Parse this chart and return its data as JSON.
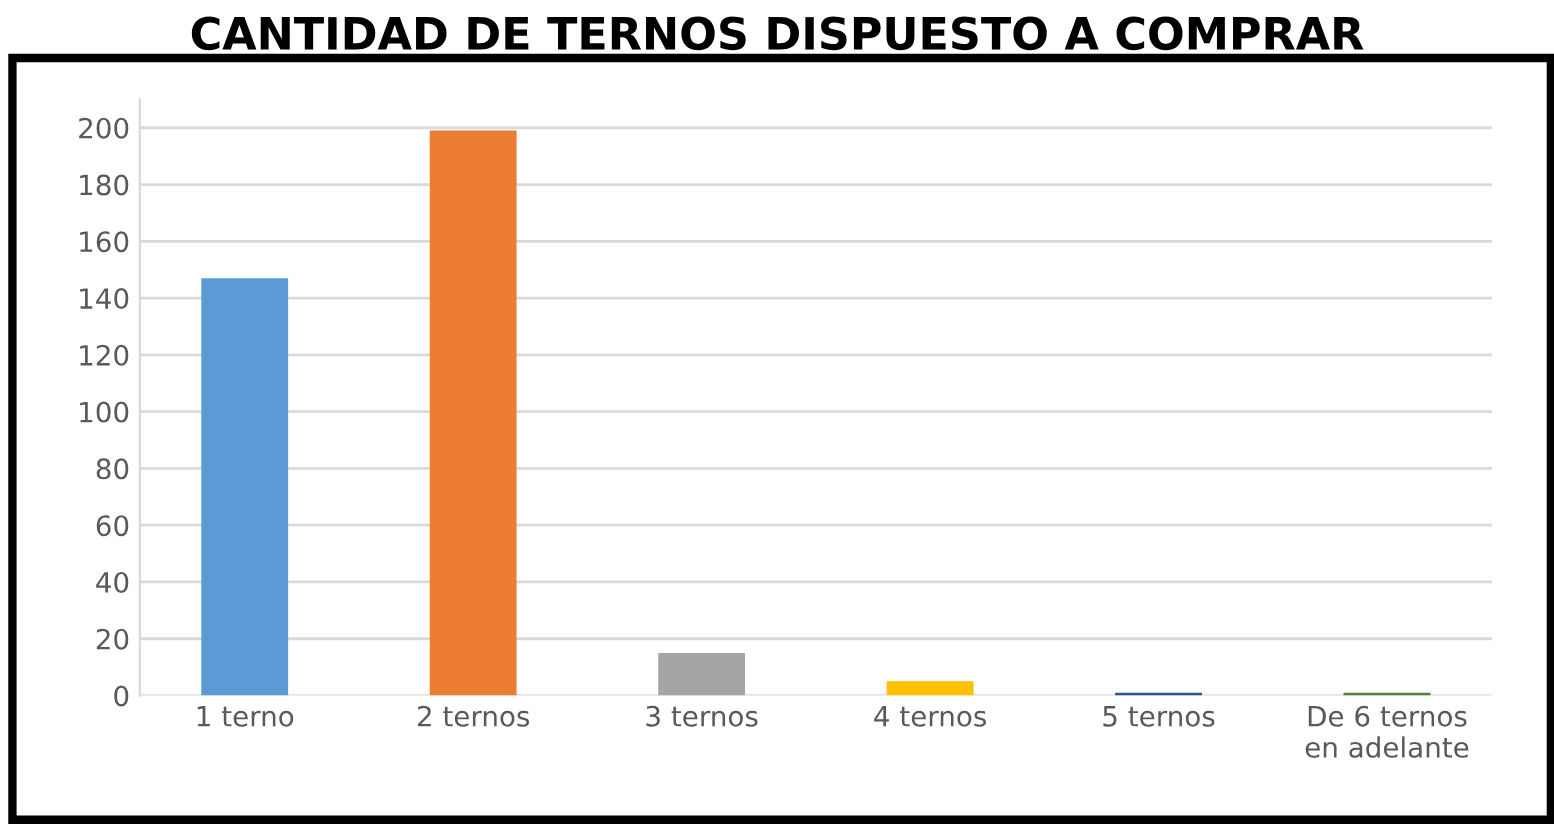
{
  "chart_data": {
    "type": "bar",
    "title": "CANTIDAD DE TERNOS DISPUESTO A COMPRAR",
    "categories": [
      "1 terno",
      "2 ternos",
      "3 ternos",
      "4 ternos",
      "5 ternos",
      "De 6 ternos\nen adelante"
    ],
    "values": [
      147,
      199,
      15,
      5,
      1,
      1
    ],
    "colors": [
      "#5b9bd5",
      "#ed7d31",
      "#a5a5a5",
      "#ffc000",
      "#2f5597",
      "#548235"
    ],
    "ylim": [
      0,
      210
    ],
    "yticks": [
      0,
      20,
      40,
      60,
      80,
      100,
      120,
      140,
      160,
      180,
      200
    ],
    "grid": "y"
  }
}
